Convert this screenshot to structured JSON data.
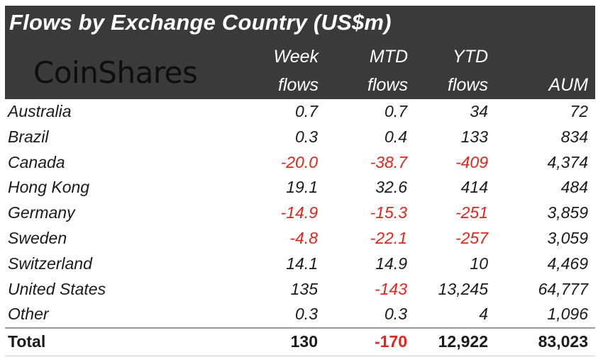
{
  "title": "Flows by Exchange Country (US$m)",
  "logo": "CoinShares",
  "columns": [
    {
      "line1": "Week",
      "line2": "flows"
    },
    {
      "line1": "MTD",
      "line2": "flows"
    },
    {
      "line1": "YTD",
      "line2": "flows"
    },
    {
      "line1": "",
      "line2": "AUM"
    }
  ],
  "rows": [
    {
      "name": "Australia",
      "week": "0.7",
      "mtd": "0.7",
      "ytd": "34",
      "aum": "72"
    },
    {
      "name": "Brazil",
      "week": "0.3",
      "mtd": "0.4",
      "ytd": "133",
      "aum": "834"
    },
    {
      "name": "Canada",
      "week": "-20.0",
      "mtd": "-38.7",
      "ytd": "-409",
      "aum": "4,374"
    },
    {
      "name": "Hong Kong",
      "week": "19.1",
      "mtd": "32.6",
      "ytd": "414",
      "aum": "484"
    },
    {
      "name": "Germany",
      "week": "-14.9",
      "mtd": "-15.3",
      "ytd": "-251",
      "aum": "3,859"
    },
    {
      "name": "Sweden",
      "week": "-4.8",
      "mtd": "-22.1",
      "ytd": "-257",
      "aum": "3,059"
    },
    {
      "name": "Switzerland",
      "week": "14.1",
      "mtd": "14.9",
      "ytd": "10",
      "aum": "4,469"
    },
    {
      "name": "United States",
      "week": "135",
      "mtd": "-143",
      "ytd": "13,245",
      "aum": "64,777"
    },
    {
      "name": "Other",
      "week": "0.3",
      "mtd": "0.3",
      "ytd": "4",
      "aum": "1,096"
    }
  ],
  "total": {
    "name": "Total",
    "week": "130",
    "mtd": "-170",
    "ytd": "12,922",
    "aum": "83,023"
  },
  "colors": {
    "header_bg": "#3a3a3a",
    "negative": "#e0261d",
    "text": "#1a1a1a"
  }
}
